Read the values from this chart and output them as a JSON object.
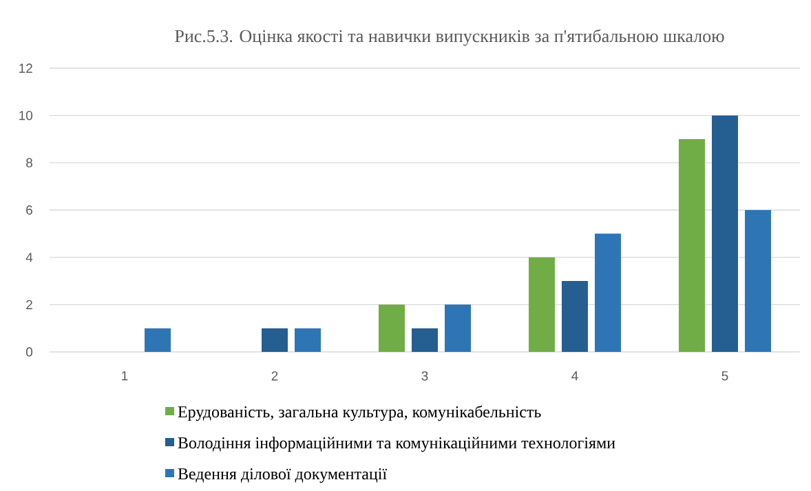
{
  "chart_data": {
    "type": "bar",
    "title": "Рис.5.3. Оцінка якості та навички випускників за п'ятибальною шкалою",
    "categories": [
      "1",
      "2",
      "3",
      "4",
      "5"
    ],
    "series": [
      {
        "name": "Ерудованість, загальна культура, комунікабельність",
        "color": "#70ad47",
        "values": [
          0,
          0,
          2,
          4,
          9
        ]
      },
      {
        "name": "Володіння інформаційними та комунікаційними технологіями",
        "color": "#255e91",
        "values": [
          0,
          1,
          1,
          3,
          10
        ]
      },
      {
        "name": "Ведення ділової документації",
        "color": "#2e75b6",
        "values": [
          1,
          1,
          2,
          5,
          6
        ]
      }
    ],
    "ylim": [
      0,
      12
    ],
    "yticks": [
      0,
      2,
      4,
      6,
      8,
      10,
      12
    ],
    "grid": "y",
    "legend": "bottom"
  }
}
